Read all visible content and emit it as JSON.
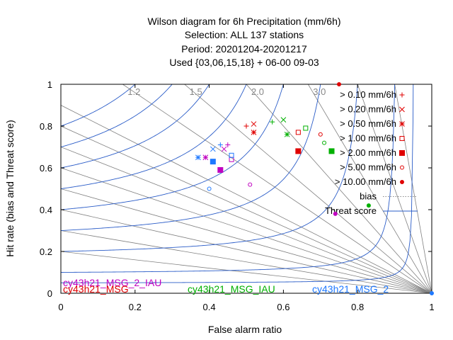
{
  "title_lines": [
    "Wilson diagram  for 6h Precipitation (mm/6h)",
    "Selection: ALL    137 stations",
    "Period: 20201204-20201217",
    "Used {03,06,15,18} + 06-00 09-03"
  ],
  "colors": {
    "cy43h21_MSG_2_IAU": "#c000c0",
    "cy43h21_MSG": "#e00000",
    "cy43h21_MSG_IAU": "#00b000",
    "cy43h21_MSG_2": "#1e78ff",
    "threat_curve": "#2a5cc8",
    "bias_line": "#888888",
    "rays": "#808080"
  },
  "chart_data": {
    "type": "scatter",
    "xlabel": "False alarm ratio",
    "ylabel": "Hit rate (bias and Threat score)",
    "xlim": [
      0,
      1
    ],
    "ylim": [
      0,
      1
    ],
    "xticks": [
      "0",
      "0.2",
      "0.4",
      "0.6",
      "0.8",
      "1"
    ],
    "yticks": [
      "0",
      "0.2",
      "0.4",
      "0.6",
      "0.8",
      "1"
    ],
    "grid": false,
    "legend_position": "top-right",
    "bias_values": [
      0.2,
      0.3,
      0.4,
      0.5,
      0.6,
      0.7,
      0.8,
      0.9,
      1.2,
      1.5,
      2.0,
      3.0,
      5.0,
      10.0
    ],
    "bias_labels": [
      {
        "text": "1.2",
        "value": 1.2
      },
      {
        "text": "1.5",
        "value": 1.5
      },
      {
        "text": "2.0",
        "value": 2.0
      },
      {
        "text": "3.0",
        "value": 3.0
      }
    ],
    "threat_values": [
      0.05,
      0.1,
      0.2,
      0.3,
      0.4,
      0.5,
      0.6,
      0.7,
      0.8
    ],
    "thresholds": [
      {
        "label": "> 0.10 mm/6h",
        "marker": "plus"
      },
      {
        "label": "> 0.20 mm/6h",
        "marker": "cross"
      },
      {
        "label": "> 0.50 mm/6h",
        "marker": "star"
      },
      {
        "label": "> 1.00 mm/6h",
        "marker": "square-open"
      },
      {
        "label": "> 2.00 mm/6h",
        "marker": "square-filled"
      },
      {
        "label": "> 5.00 mm/6h",
        "marker": "circle-open"
      },
      {
        "label": "> 10.00 mm/6h",
        "marker": "circle-filled"
      }
    ],
    "legend_lines": [
      {
        "label": "bias",
        "style": "dotted"
      },
      {
        "label": "Threat score",
        "style": "solid"
      }
    ],
    "series": [
      {
        "name": "cy43h21_MSG_2_IAU",
        "points": [
          {
            "x": 0.45,
            "y": 0.71
          },
          {
            "x": 0.44,
            "y": 0.69
          },
          {
            "x": 0.39,
            "y": 0.65
          },
          {
            "x": 0.46,
            "y": 0.64
          },
          {
            "x": 0.43,
            "y": 0.59
          },
          {
            "x": 0.51,
            "y": 0.52
          },
          {
            "x": 0.74,
            "y": 0.38
          }
        ]
      },
      {
        "name": "cy43h21_MSG",
        "points": [
          {
            "x": 0.5,
            "y": 0.8
          },
          {
            "x": 0.52,
            "y": 0.81
          },
          {
            "x": 0.52,
            "y": 0.77
          },
          {
            "x": 0.64,
            "y": 0.77
          },
          {
            "x": 0.64,
            "y": 0.68
          },
          {
            "x": 0.7,
            "y": 0.76
          },
          {
            "x": 0.75,
            "y": 1.0
          }
        ]
      },
      {
        "name": "cy43h21_MSG_IAU",
        "points": [
          {
            "x": 0.57,
            "y": 0.82
          },
          {
            "x": 0.6,
            "y": 0.83
          },
          {
            "x": 0.61,
            "y": 0.76
          },
          {
            "x": 0.66,
            "y": 0.79
          },
          {
            "x": 0.73,
            "y": 0.68
          },
          {
            "x": 0.71,
            "y": 0.72
          },
          {
            "x": 0.83,
            "y": 0.42
          }
        ]
      },
      {
        "name": "cy43h21_MSG_2",
        "points": [
          {
            "x": 0.43,
            "y": 0.71
          },
          {
            "x": 0.41,
            "y": 0.69
          },
          {
            "x": 0.37,
            "y": 0.65
          },
          {
            "x": 0.46,
            "y": 0.66
          },
          {
            "x": 0.41,
            "y": 0.63
          },
          {
            "x": 0.4,
            "y": 0.5
          },
          {
            "x": 1.0,
            "y": 0.0
          }
        ]
      }
    ]
  }
}
